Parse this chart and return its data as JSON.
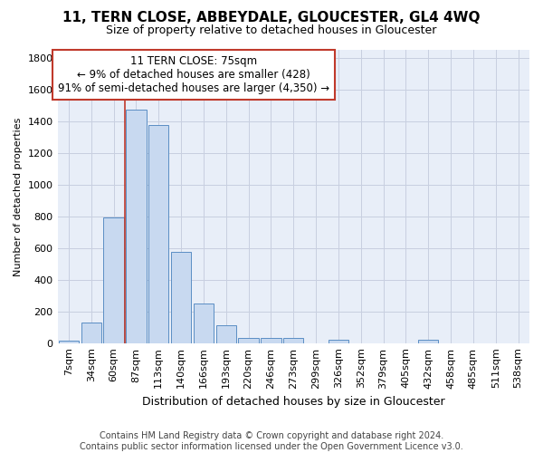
{
  "title": "11, TERN CLOSE, ABBEYDALE, GLOUCESTER, GL4 4WQ",
  "subtitle": "Size of property relative to detached houses in Gloucester",
  "xlabel": "Distribution of detached houses by size in Gloucester",
  "ylabel": "Number of detached properties",
  "categories": [
    "7sqm",
    "34sqm",
    "60sqm",
    "87sqm",
    "113sqm",
    "140sqm",
    "166sqm",
    "193sqm",
    "220sqm",
    "246sqm",
    "273sqm",
    "299sqm",
    "326sqm",
    "352sqm",
    "379sqm",
    "405sqm",
    "432sqm",
    "458sqm",
    "485sqm",
    "511sqm",
    "538sqm"
  ],
  "values": [
    15,
    130,
    795,
    1475,
    1375,
    575,
    250,
    115,
    35,
    30,
    30,
    0,
    20,
    0,
    0,
    0,
    20,
    0,
    0,
    0,
    0
  ],
  "bar_color": "#c8d9f0",
  "bar_edge_color": "#5b8ec4",
  "vline_color": "#c0392b",
  "vline_x_index": 3,
  "annotation_text": "11 TERN CLOSE: 75sqm\n← 9% of detached houses are smaller (428)\n91% of semi-detached houses are larger (4,350) →",
  "annotation_box_color": "#c0392b",
  "ylim": [
    0,
    1850
  ],
  "yticks": [
    0,
    200,
    400,
    600,
    800,
    1000,
    1200,
    1400,
    1600,
    1800
  ],
  "grid_color": "#c8cfe0",
  "bg_color": "#e8eef8",
  "footer": "Contains HM Land Registry data © Crown copyright and database right 2024.\nContains public sector information licensed under the Open Government Licence v3.0.",
  "title_fontsize": 11,
  "subtitle_fontsize": 9,
  "xlabel_fontsize": 9,
  "ylabel_fontsize": 8,
  "tick_fontsize": 8,
  "footer_fontsize": 7
}
